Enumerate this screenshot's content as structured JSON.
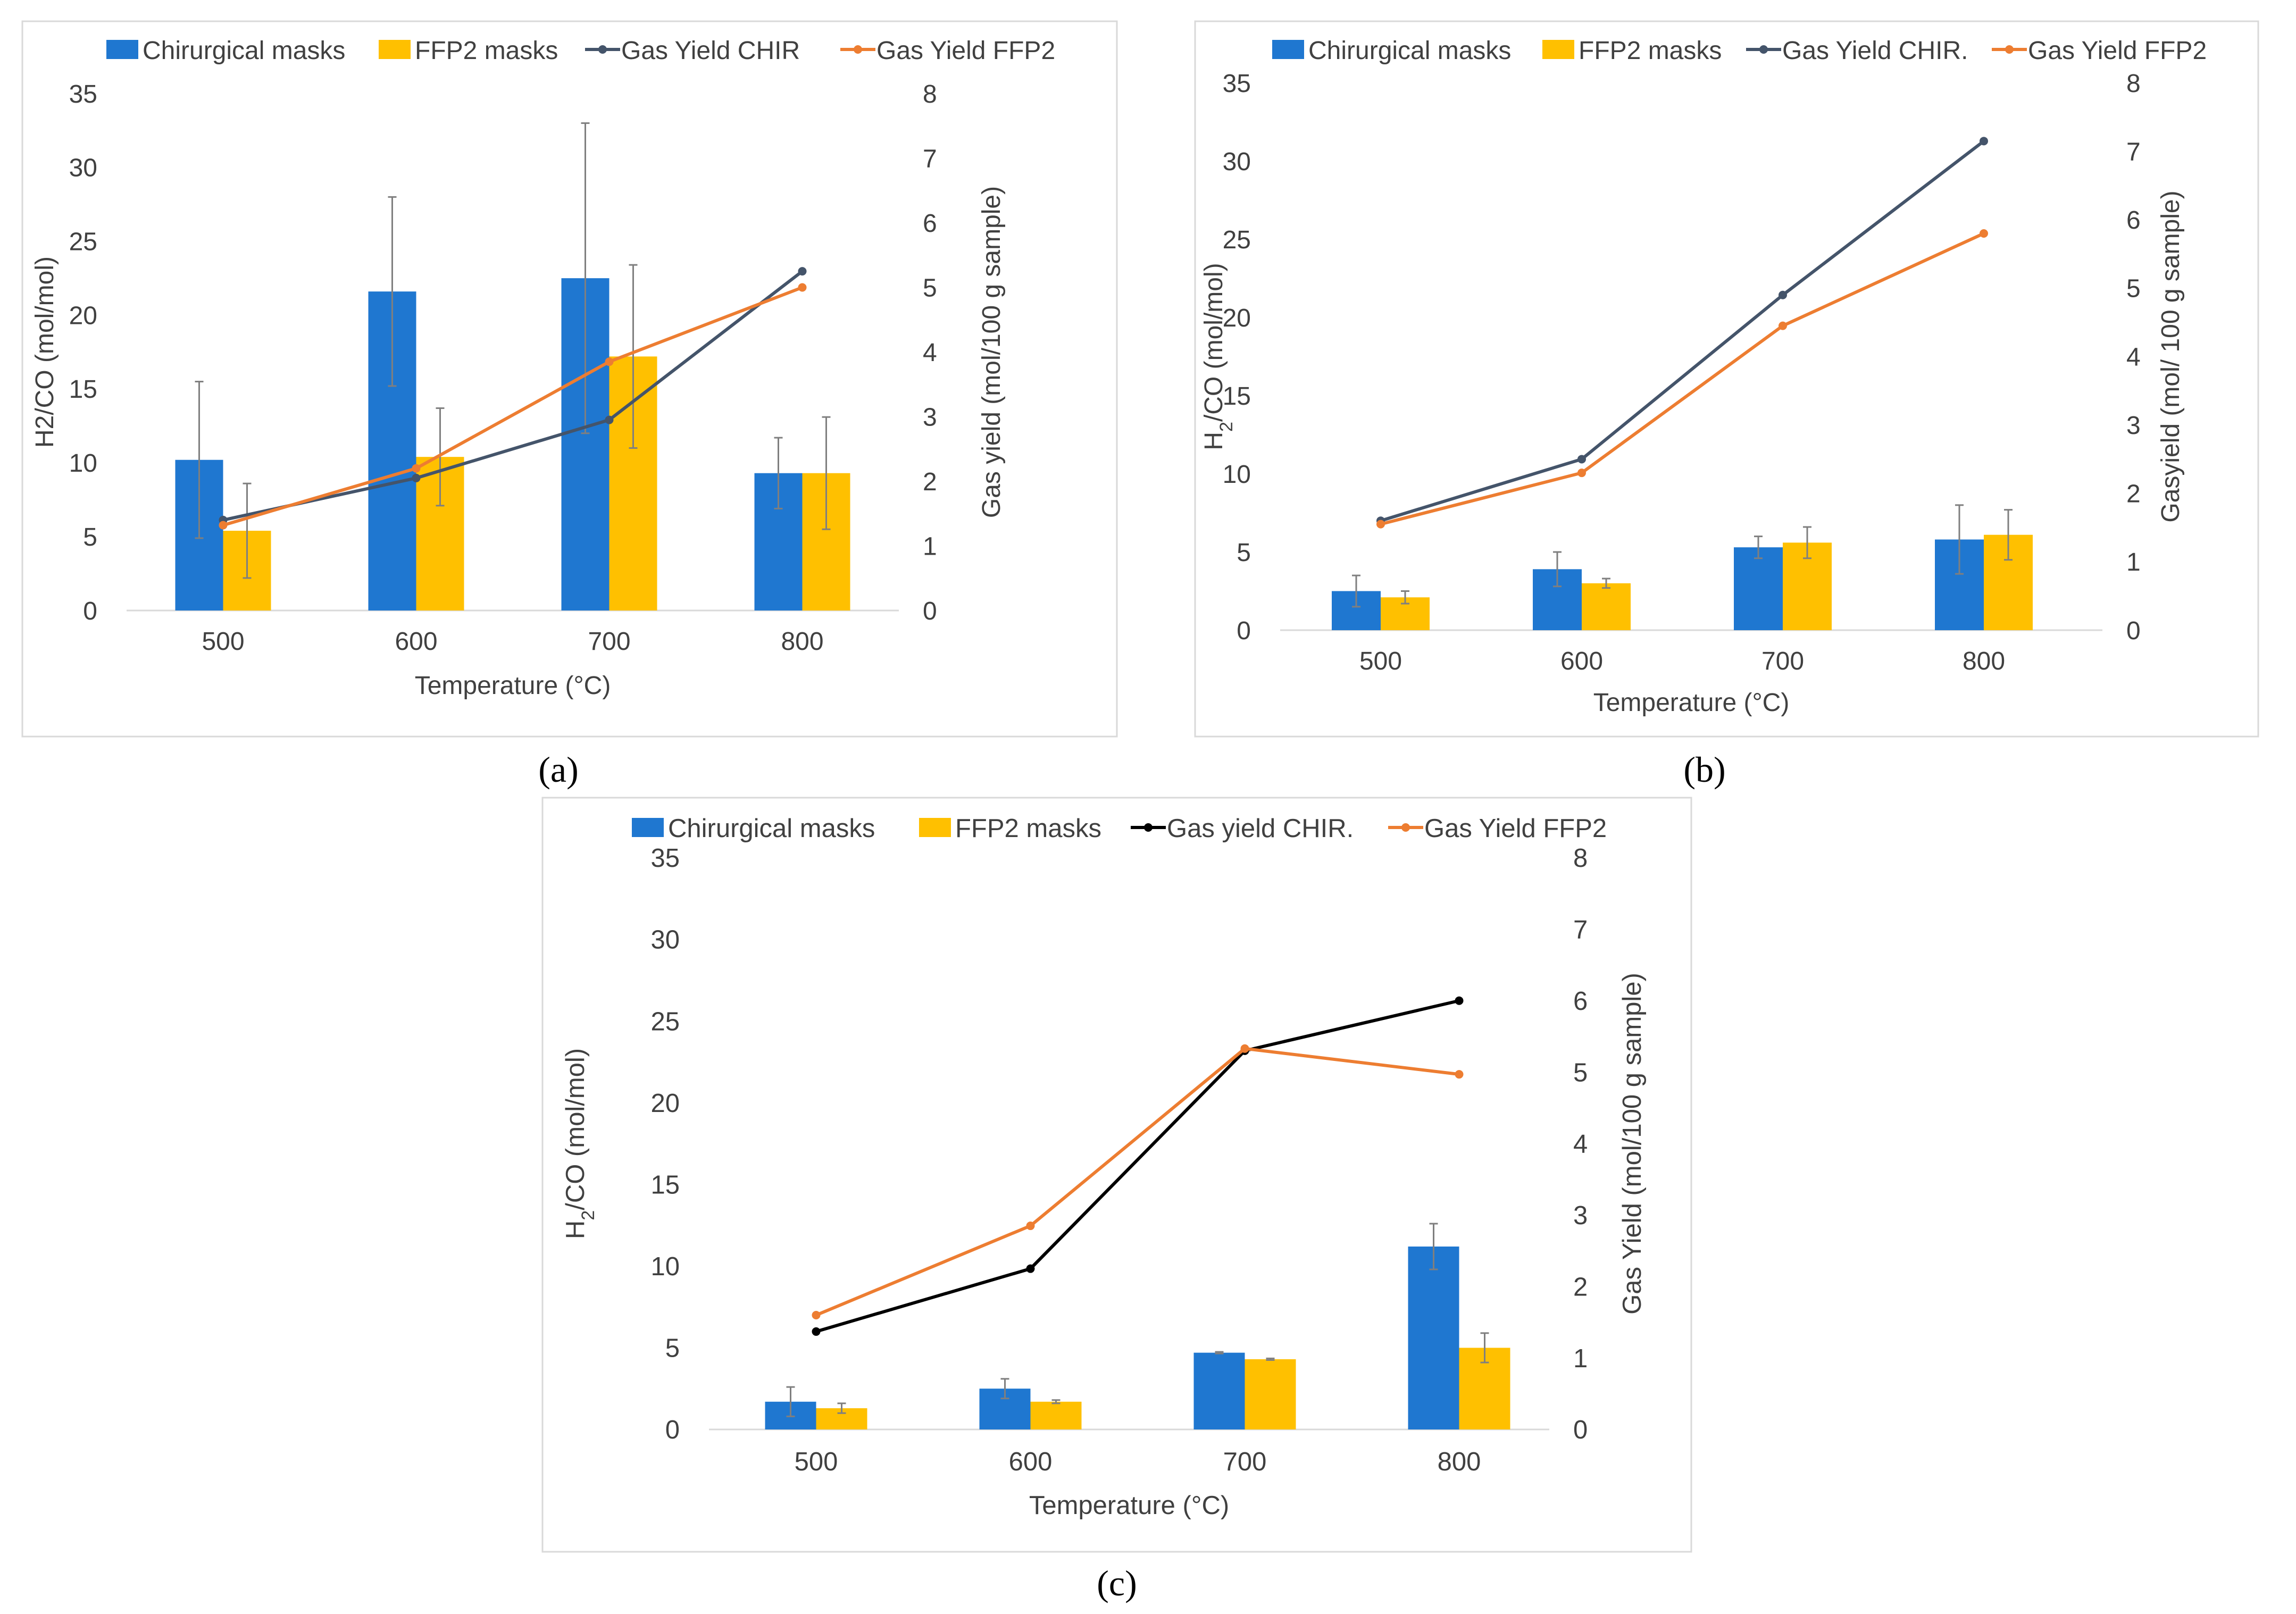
{
  "chart_data": [
    {
      "type": "bar+line",
      "panel_label": "(a)",
      "categories": [
        "500",
        "600",
        "700",
        "800"
      ],
      "xlabel": "Temperature (°C)",
      "ylabel": "H2/CO (mol/mol)",
      "ylabel_sub": "",
      "ylabel_rest": "",
      "y2label": "Gas yield (mol/100 g sample)",
      "ylim": [
        0,
        35
      ],
      "yticks": [
        "0",
        "5",
        "10",
        "15",
        "20",
        "25",
        "30",
        "35"
      ],
      "y2lim": [
        0,
        8
      ],
      "y2ticks": [
        "0",
        "1",
        "2",
        "3",
        "4",
        "5",
        "6",
        "7",
        "8"
      ],
      "bar_series": [
        {
          "name": "Chirurgical masks",
          "color": "#1f77d0",
          "values": [
            10.2,
            21.6,
            22.5,
            9.3
          ],
          "errors": [
            5.3,
            6.4,
            10.5,
            2.4
          ]
        },
        {
          "name": "FFP2 masks",
          "color": "#ffc000",
          "values": [
            5.4,
            10.4,
            17.2,
            9.3
          ],
          "errors": [
            3.2,
            3.3,
            6.2,
            3.8
          ]
        }
      ],
      "line_series": [
        {
          "name": "Gas Yield CHIR",
          "color": "#44546a",
          "values": [
            1.4,
            2.05,
            2.95,
            5.25
          ]
        },
        {
          "name": "Gas Yield FFP2",
          "color": "#ed7d31",
          "values": [
            1.32,
            2.2,
            3.85,
            5.0
          ]
        }
      ]
    },
    {
      "type": "bar+line",
      "panel_label": "(b)",
      "categories": [
        "500",
        "600",
        "700",
        "800"
      ],
      "xlabel": "Temperature (°C)",
      "ylabel": "",
      "ylabel_sub": "2",
      "ylabel_rest": "/CO (mol/mol)",
      "y2label": "Gasyield (mol/ 100 g sample)",
      "ylim": [
        0,
        35
      ],
      "yticks": [
        "0",
        "5",
        "10",
        "15",
        "20",
        "25",
        "30",
        "35"
      ],
      "y2lim": [
        0,
        8
      ],
      "y2ticks": [
        "0",
        "1",
        "2",
        "3",
        "4",
        "5",
        "6",
        "7",
        "8"
      ],
      "bar_series": [
        {
          "name": "Chirurgical masks",
          "color": "#1f77d0",
          "values": [
            2.5,
            3.9,
            5.3,
            5.8
          ],
          "errors": [
            1.0,
            1.1,
            0.7,
            2.2
          ]
        },
        {
          "name": "FFP2 masks",
          "color": "#ffc000",
          "values": [
            2.1,
            3.0,
            5.6,
            6.1
          ],
          "errors": [
            0.4,
            0.3,
            1.0,
            1.6
          ]
        }
      ],
      "line_series": [
        {
          "name": "Gas Yield CHIR.",
          "color": "#44546a",
          "values": [
            1.6,
            2.5,
            4.9,
            7.15
          ]
        },
        {
          "name": "Gas Yield FFP2",
          "color": "#ed7d31",
          "values": [
            1.55,
            2.3,
            4.45,
            5.8
          ]
        }
      ]
    },
    {
      "type": "bar+line",
      "panel_label": "(c)",
      "categories": [
        "500",
        "600",
        "700",
        "800"
      ],
      "xlabel": "Temperature (°C)",
      "ylabel": "",
      "ylabel_sub": "2",
      "ylabel_rest": "/CO (mol/mol)",
      "y2label": "Gas Yield (mol/100 g sample)",
      "ylim": [
        0,
        35
      ],
      "yticks": [
        "0",
        "5",
        "10",
        "15",
        "20",
        "25",
        "30",
        "35"
      ],
      "y2lim": [
        0,
        8
      ],
      "y2ticks": [
        "0",
        "1",
        "2",
        "3",
        "4",
        "5",
        "6",
        "7",
        "8"
      ],
      "bar_series": [
        {
          "name": "Chirurgical masks",
          "color": "#1f77d0",
          "values": [
            1.7,
            2.5,
            4.7,
            11.2
          ],
          "errors": [
            0.9,
            0.6,
            0.05,
            1.4
          ]
        },
        {
          "name": "FFP2 masks",
          "color": "#ffc000",
          "values": [
            1.3,
            1.7,
            4.3,
            5.0
          ],
          "errors": [
            0.3,
            0.1,
            0.05,
            0.9
          ]
        }
      ],
      "line_series": [
        {
          "name": "Gas yield CHIR.",
          "color": "#000000",
          "values": [
            1.37,
            2.25,
            5.3,
            6.0
          ]
        },
        {
          "name": "Gas Yield FFP2",
          "color": "#ed7d31",
          "values": [
            1.6,
            2.85,
            5.33,
            4.97
          ]
        }
      ]
    }
  ]
}
